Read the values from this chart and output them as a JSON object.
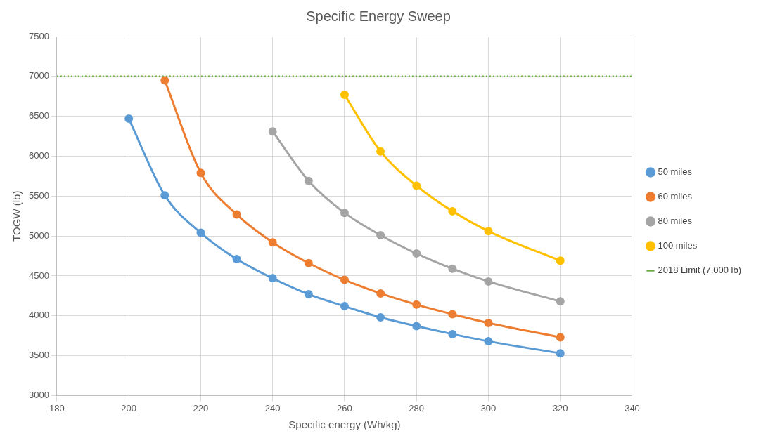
{
  "chart_data": {
    "type": "line",
    "title": "Specific Energy Sweep",
    "xlabel": "Specific energy (Wh/kg)",
    "ylabel": "TOGW (lb)",
    "xlim": [
      180,
      340
    ],
    "xticks": [
      180,
      200,
      220,
      240,
      260,
      280,
      300,
      320,
      340
    ],
    "ylim": [
      3000,
      7500
    ],
    "yticks": [
      3000,
      3500,
      4000,
      4500,
      5000,
      5500,
      6000,
      6500,
      7000,
      7500
    ],
    "grid": true,
    "legend": "right",
    "marker": "circle",
    "line_style": "solid",
    "series": [
      {
        "name": "50 miles",
        "color": "#5b9bd5",
        "x": [
          200,
          210,
          220,
          230,
          240,
          250,
          260,
          270,
          280,
          290,
          300,
          320
        ],
        "values": [
          6470,
          5510,
          5040,
          4710,
          4470,
          4270,
          4120,
          3980,
          3870,
          3770,
          3680,
          3530
        ]
      },
      {
        "name": "60 miles",
        "color": "#ed7d31",
        "x": [
          210,
          220,
          230,
          240,
          250,
          260,
          270,
          280,
          290,
          300,
          320
        ],
        "values": [
          6950,
          5790,
          5270,
          4920,
          4660,
          4450,
          4280,
          4140,
          4020,
          3910,
          3730
        ]
      },
      {
        "name": "80 miles",
        "color": "#a5a5a5",
        "x": [
          240,
          250,
          260,
          270,
          280,
          290,
          300,
          320
        ],
        "values": [
          6310,
          5690,
          5290,
          5010,
          4780,
          4590,
          4430,
          4180
        ]
      },
      {
        "name": "100 miles",
        "color": "#ffc000",
        "x": [
          260,
          270,
          280,
          290,
          300,
          320
        ],
        "values": [
          6770,
          6060,
          5630,
          5310,
          5060,
          4690
        ]
      }
    ],
    "ref_lines": [
      {
        "axis": "y",
        "value": 7000,
        "label": "2018 Limit (7,000 lb)",
        "color": "#70ad47",
        "line_style": "dotted"
      }
    ]
  }
}
